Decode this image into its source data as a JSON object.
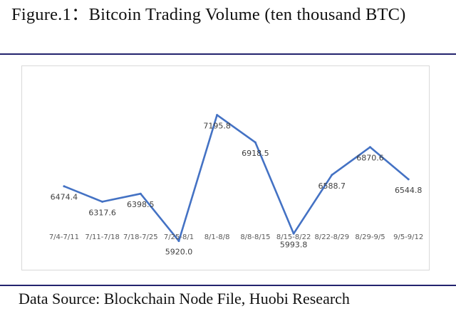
{
  "figure": {
    "title": "Figure.1：Bitcoin Trading Volume (ten thousand BTC)",
    "source": "Data Source: Blockchain Node File, Huobi Research"
  },
  "colors": {
    "line": "#4472c4",
    "rule": "#23236e",
    "frame": "#d9d9d9",
    "text": "#404040"
  },
  "chart_data": {
    "type": "line",
    "title": "",
    "xlabel": "",
    "ylabel": "",
    "grid": false,
    "legend": "none",
    "ylim": [
      0,
      7200
    ],
    "categories": [
      "7/4-7/11",
      "7/11-7/18",
      "7/18-7/25",
      "7/25-8/1",
      "8/1-8/8",
      "8/8-8/15",
      "8/15-8/22",
      "8/22-8/29",
      "8/29-9/5",
      "9/5-9/12"
    ],
    "series": [
      {
        "values": [
          6474.4,
          6317.6,
          6398.5,
          5920.0,
          7195.8,
          6918.5,
          5993.8,
          6588.7,
          6870.6,
          6544.8
        ],
        "labels": [
          "6474.4",
          "6317.6",
          "6398.5",
          "5920.0",
          "7195.8",
          "6918.5",
          "5993.8",
          "6588.7",
          "6870.6",
          "6544.8"
        ]
      }
    ]
  }
}
